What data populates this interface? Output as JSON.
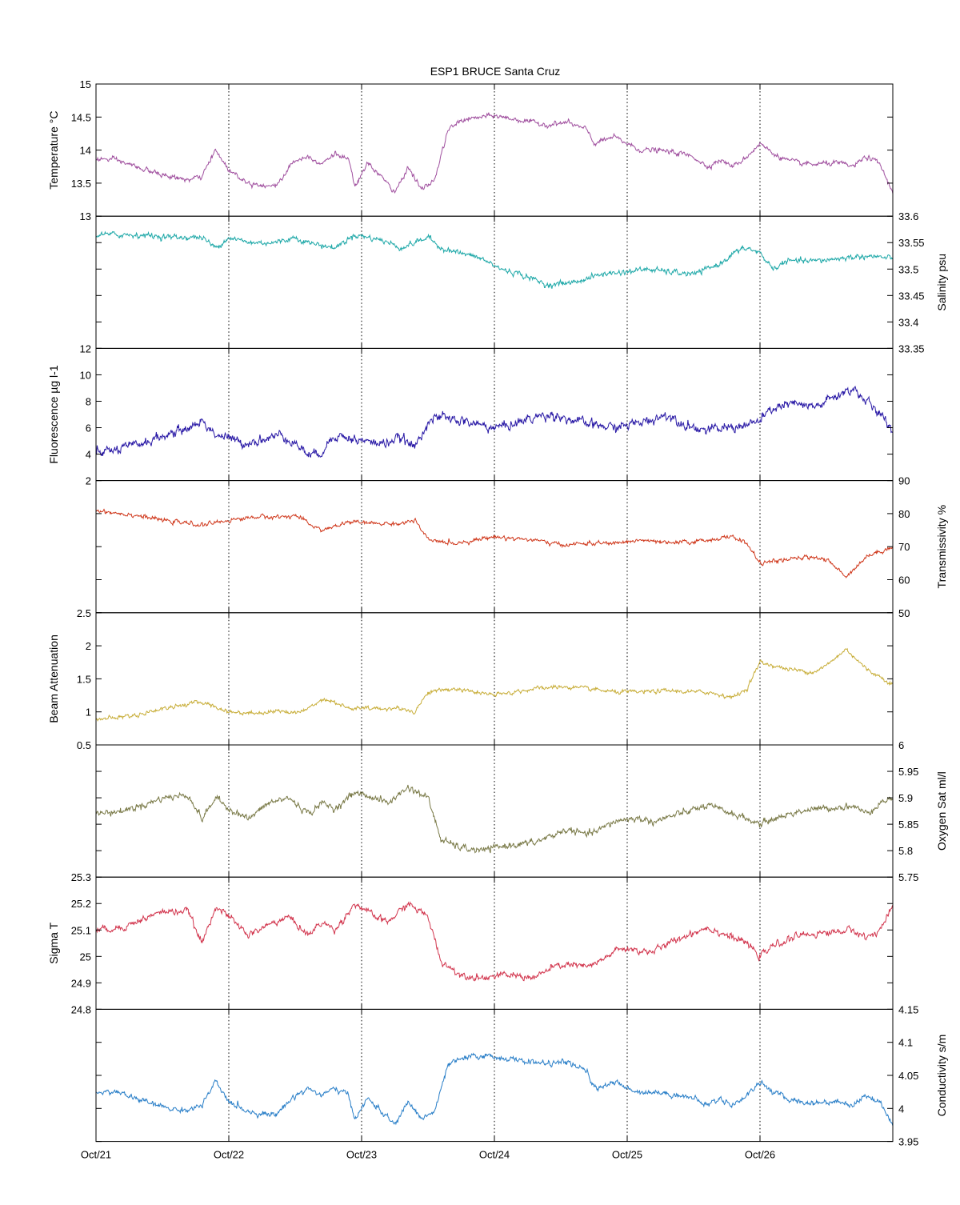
{
  "figure": {
    "title": "ESP1 BRUCE Santa Cruz",
    "x_tick_labels": [
      "Oct/21",
      "Oct/22",
      "Oct/23",
      "Oct/24",
      "Oct/25",
      "Oct/26"
    ]
  },
  "chart_data": [
    {
      "type": "line",
      "name": "temperature",
      "ylabel": "Temperature °C",
      "axis_side": "left",
      "ylim": [
        13,
        15
      ],
      "yticks": [
        13,
        13.5,
        14,
        14.5,
        15
      ],
      "ytick_labels": [
        "13",
        "13.5",
        "14",
        "14.5",
        "15"
      ],
      "color": "#a0509f",
      "noise": 0.035,
      "xlim": [
        0,
        6
      ],
      "grid_x": true,
      "x": [
        0,
        0.15,
        0.3,
        0.45,
        0.6,
        0.7,
        0.8,
        0.9,
        1.0,
        1.15,
        1.35,
        1.5,
        1.6,
        1.7,
        1.8,
        1.9,
        1.95,
        2.05,
        2.15,
        2.25,
        2.35,
        2.45,
        2.55,
        2.65,
        2.75,
        2.9,
        3.0,
        3.2,
        3.4,
        3.55,
        3.7,
        3.75,
        3.9,
        4.0,
        4.1,
        4.2,
        4.3,
        4.4,
        4.5,
        4.6,
        4.7,
        4.8,
        4.9,
        5.0,
        5.1,
        5.2,
        5.3,
        5.4,
        5.5,
        5.6,
        5.7,
        5.8,
        5.9,
        6.0
      ],
      "values": [
        13.87,
        13.85,
        13.75,
        13.65,
        13.58,
        13.55,
        13.6,
        14.0,
        13.7,
        13.5,
        13.45,
        13.85,
        13.9,
        13.8,
        13.95,
        13.85,
        13.45,
        13.8,
        13.6,
        13.35,
        13.75,
        13.4,
        13.55,
        14.3,
        14.45,
        14.5,
        14.52,
        14.45,
        14.38,
        14.42,
        14.3,
        14.1,
        14.2,
        14.1,
        14.0,
        14.0,
        13.98,
        13.95,
        13.9,
        13.75,
        13.85,
        13.75,
        13.9,
        14.1,
        13.95,
        13.85,
        13.8,
        13.78,
        13.8,
        13.8,
        13.75,
        13.9,
        13.8,
        13.35
      ]
    },
    {
      "type": "line",
      "name": "salinity",
      "ylabel": "Salinity psu",
      "axis_side": "right",
      "ylim": [
        33.35,
        33.6
      ],
      "yticks": [
        33.35,
        33.4,
        33.45,
        33.5,
        33.55,
        33.6
      ],
      "ytick_labels": [
        "33.35",
        "33.4",
        "33.45",
        "33.5",
        "33.55",
        "33.6"
      ],
      "color": "#1ea8a8",
      "noise": 0.005,
      "xlim": [
        0,
        6
      ],
      "grid_x": true,
      "x": [
        0,
        0.3,
        0.6,
        0.8,
        0.9,
        1.0,
        1.15,
        1.35,
        1.5,
        1.6,
        1.8,
        1.95,
        2.15,
        2.3,
        2.5,
        2.6,
        2.75,
        2.9,
        3.05,
        3.2,
        3.4,
        3.6,
        3.8,
        4.0,
        4.15,
        4.3,
        4.5,
        4.6,
        4.7,
        4.8,
        4.9,
        5.0,
        5.1,
        5.2,
        5.4,
        5.6,
        5.8,
        6.0
      ],
      "values": [
        33.565,
        33.565,
        33.56,
        33.56,
        33.54,
        33.56,
        33.55,
        33.55,
        33.56,
        33.55,
        33.54,
        33.565,
        33.555,
        33.54,
        33.56,
        33.54,
        33.53,
        33.52,
        33.5,
        33.49,
        33.47,
        33.475,
        33.49,
        33.495,
        33.5,
        33.495,
        33.49,
        33.5,
        33.51,
        33.53,
        33.54,
        33.53,
        33.5,
        33.515,
        33.515,
        33.52,
        33.525,
        33.52
      ]
    },
    {
      "type": "line",
      "name": "fluorescence",
      "ylabel": "Fluorescence µg l-1",
      "axis_side": "left",
      "ylim": [
        2,
        12
      ],
      "yticks": [
        2,
        4,
        6,
        8,
        10,
        12
      ],
      "ytick_labels": [
        "2",
        "4",
        "6",
        "8",
        "10",
        "12"
      ],
      "color": "#2a1aa6",
      "noise": 0.35,
      "xlim": [
        0,
        6
      ],
      "grid_x": true,
      "x": [
        0,
        0.2,
        0.4,
        0.55,
        0.7,
        0.8,
        0.9,
        1.0,
        1.1,
        1.2,
        1.3,
        1.4,
        1.5,
        1.6,
        1.65,
        1.7,
        1.8,
        1.9,
        2.0,
        2.15,
        2.3,
        2.4,
        2.5,
        2.6,
        2.75,
        2.9,
        3.0,
        3.15,
        3.3,
        3.45,
        3.6,
        3.75,
        3.9,
        4.0,
        4.15,
        4.3,
        4.45,
        4.6,
        4.75,
        4.9,
        5.0,
        5.1,
        5.25,
        5.4,
        5.5,
        5.6,
        5.7,
        5.8,
        5.9,
        6.0
      ],
      "values": [
        4.1,
        4.4,
        5.0,
        5.5,
        6.0,
        6.5,
        5.5,
        5.2,
        4.8,
        5.0,
        5.2,
        5.5,
        4.8,
        4.0,
        3.9,
        4.2,
        5.5,
        5.2,
        5.0,
        4.8,
        5.2,
        4.5,
        6.5,
        6.8,
        6.5,
        6.2,
        6.0,
        6.3,
        6.8,
        7.0,
        6.5,
        6.2,
        6.0,
        6.2,
        6.5,
        7.0,
        6.2,
        5.8,
        6.0,
        6.2,
        6.5,
        7.5,
        7.8,
        7.5,
        8.0,
        8.5,
        9.0,
        8.0,
        7.0,
        5.8
      ]
    },
    {
      "type": "line",
      "name": "transmissivity",
      "ylabel": "Transmissivity %",
      "axis_side": "right",
      "ylim": [
        50,
        90
      ],
      "yticks": [
        50,
        60,
        70,
        80,
        90
      ],
      "ytick_labels": [
        "50",
        "60",
        "70",
        "80",
        "90"
      ],
      "color": "#d03a1e",
      "noise": 0.6,
      "xlim": [
        0,
        6
      ],
      "grid_x": true,
      "x": [
        0,
        0.3,
        0.5,
        0.7,
        0.8,
        1.0,
        1.2,
        1.4,
        1.5,
        1.6,
        1.7,
        1.8,
        1.9,
        2.1,
        2.3,
        2.4,
        2.5,
        2.7,
        3.0,
        3.3,
        3.5,
        3.7,
        3.9,
        4.1,
        4.3,
        4.5,
        4.6,
        4.8,
        4.9,
        5.0,
        5.2,
        5.4,
        5.5,
        5.65,
        5.8,
        6.0
      ],
      "values": [
        81,
        79.5,
        78,
        77,
        76.5,
        78,
        79,
        79,
        79.5,
        77,
        75,
        76,
        77.5,
        77,
        77,
        78,
        72,
        71,
        73,
        72,
        70.5,
        71,
        71,
        72,
        71,
        71.5,
        72,
        73,
        71,
        65,
        66,
        67,
        66,
        61,
        67,
        70
      ]
    },
    {
      "type": "line",
      "name": "beam_attenuation",
      "ylabel": "Beam Attenuation",
      "axis_side": "left",
      "ylim": [
        0.5,
        2.5
      ],
      "yticks": [
        0.5,
        1,
        1.5,
        2,
        2.5
      ],
      "ytick_labels": [
        "0.5",
        "1",
        "1.5",
        "2",
        "2.5"
      ],
      "color": "#c8ae3a",
      "noise": 0.03,
      "xlim": [
        0,
        6
      ],
      "grid_x": true,
      "x": [
        0,
        0.3,
        0.5,
        0.7,
        0.8,
        1.0,
        1.2,
        1.4,
        1.5,
        1.6,
        1.7,
        1.8,
        1.9,
        2.1,
        2.3,
        2.4,
        2.5,
        2.7,
        3.0,
        3.3,
        3.5,
        3.7,
        3.9,
        4.1,
        4.3,
        4.5,
        4.6,
        4.8,
        4.9,
        5.0,
        5.2,
        5.4,
        5.5,
        5.65,
        5.8,
        6.0
      ],
      "values": [
        0.88,
        0.95,
        1.05,
        1.12,
        1.15,
        1.0,
        0.98,
        1.02,
        0.98,
        1.05,
        1.2,
        1.15,
        1.05,
        1.05,
        1.05,
        1.0,
        1.3,
        1.35,
        1.25,
        1.35,
        1.38,
        1.35,
        1.3,
        1.3,
        1.32,
        1.3,
        1.3,
        1.22,
        1.35,
        1.75,
        1.65,
        1.6,
        1.7,
        1.95,
        1.65,
        1.42
      ]
    },
    {
      "type": "line",
      "name": "oxygen_sat",
      "ylabel": "Oxygen Sat ml/l",
      "axis_side": "right",
      "ylim": [
        5.75,
        6
      ],
      "yticks": [
        5.75,
        5.8,
        5.85,
        5.9,
        5.95,
        6
      ],
      "ytick_labels": [
        "5.75",
        "5.8",
        "5.85",
        "5.9",
        "5.95",
        "6"
      ],
      "color": "#7a7a48",
      "noise": 0.006,
      "xlim": [
        0,
        6
      ],
      "grid_x": true,
      "x": [
        0,
        0.2,
        0.4,
        0.5,
        0.7,
        0.75,
        0.8,
        0.9,
        1.0,
        1.15,
        1.3,
        1.45,
        1.6,
        1.7,
        1.8,
        1.95,
        2.1,
        2.2,
        2.35,
        2.5,
        2.6,
        2.75,
        2.9,
        3.1,
        3.3,
        3.45,
        3.55,
        3.7,
        3.8,
        3.9,
        4.0,
        4.1,
        4.2,
        4.4,
        4.6,
        4.8,
        4.9,
        5.0,
        5.1,
        5.3,
        5.5,
        5.7,
        5.8,
        5.9,
        6.0
      ],
      "values": [
        5.87,
        5.875,
        5.89,
        5.9,
        5.905,
        5.88,
        5.86,
        5.9,
        5.88,
        5.86,
        5.89,
        5.9,
        5.87,
        5.89,
        5.88,
        5.91,
        5.9,
        5.89,
        5.92,
        5.9,
        5.82,
        5.805,
        5.8,
        5.81,
        5.815,
        5.83,
        5.84,
        5.83,
        5.84,
        5.855,
        5.86,
        5.86,
        5.855,
        5.87,
        5.885,
        5.87,
        5.86,
        5.85,
        5.86,
        5.875,
        5.88,
        5.885,
        5.87,
        5.89,
        5.9
      ]
    },
    {
      "type": "line",
      "name": "sigma_t",
      "ylabel": "Sigma T",
      "axis_side": "left",
      "ylim": [
        24.8,
        25.3
      ],
      "yticks": [
        24.8,
        24.9,
        25,
        25.1,
        25.2,
        25.3
      ],
      "ytick_labels": [
        "24.8",
        "24.9",
        "25",
        "25.1",
        "25.2",
        "25.3"
      ],
      "color": "#d2364e",
      "noise": 0.012,
      "xlim": [
        0,
        6
      ],
      "grid_x": true,
      "x": [
        0,
        0.2,
        0.4,
        0.5,
        0.7,
        0.75,
        0.8,
        0.9,
        1.0,
        1.15,
        1.3,
        1.45,
        1.6,
        1.7,
        1.8,
        1.95,
        2.1,
        2.2,
        2.35,
        2.5,
        2.6,
        2.75,
        2.9,
        3.1,
        3.3,
        3.45,
        3.55,
        3.7,
        3.8,
        3.9,
        4.0,
        4.1,
        4.2,
        4.4,
        4.6,
        4.8,
        4.9,
        5.0,
        5.1,
        5.3,
        5.5,
        5.7,
        5.8,
        5.9,
        6.0
      ],
      "values": [
        25.1,
        25.11,
        25.15,
        25.17,
        25.17,
        25.1,
        25.05,
        25.19,
        25.15,
        25.08,
        25.12,
        25.15,
        25.08,
        25.13,
        25.1,
        25.2,
        25.15,
        25.13,
        25.2,
        25.15,
        24.98,
        24.93,
        24.92,
        24.93,
        24.92,
        24.96,
        24.97,
        24.96,
        24.98,
        25.02,
        25.03,
        25.02,
        25.02,
        25.07,
        25.11,
        25.07,
        25.05,
        25.0,
        25.04,
        25.08,
        25.09,
        25.1,
        25.07,
        25.1,
        25.18
      ]
    },
    {
      "type": "line",
      "name": "conductivity",
      "ylabel": "Conductivity s/m",
      "axis_side": "right",
      "ylim": [
        3.95,
        4.15
      ],
      "yticks": [
        3.95,
        4,
        4.05,
        4.1,
        4.15
      ],
      "ytick_labels": [
        "3.95",
        "4",
        "4.05",
        "4.1",
        "4.15"
      ],
      "color": "#2a7fc8",
      "noise": 0.004,
      "xlim": [
        0,
        6
      ],
      "grid_x": true,
      "x": [
        0,
        0.15,
        0.3,
        0.45,
        0.6,
        0.7,
        0.8,
        0.9,
        1.0,
        1.15,
        1.35,
        1.5,
        1.6,
        1.7,
        1.8,
        1.9,
        1.95,
        2.05,
        2.15,
        2.25,
        2.35,
        2.45,
        2.55,
        2.65,
        2.75,
        2.9,
        3.0,
        3.2,
        3.4,
        3.55,
        3.7,
        3.75,
        3.9,
        4.0,
        4.1,
        4.2,
        4.3,
        4.4,
        4.5,
        4.6,
        4.7,
        4.8,
        4.9,
        5.0,
        5.1,
        5.2,
        5.3,
        5.4,
        5.5,
        5.6,
        5.7,
        5.8,
        5.9,
        6.0
      ],
      "values": [
        4.025,
        4.025,
        4.015,
        4.005,
        3.998,
        3.998,
        4.005,
        4.04,
        4.01,
        3.995,
        3.99,
        4.02,
        4.03,
        4.02,
        4.03,
        4.02,
        3.985,
        4.015,
        3.995,
        3.975,
        4.01,
        3.985,
        3.995,
        4.065,
        4.075,
        4.08,
        4.078,
        4.072,
        4.068,
        4.07,
        4.055,
        4.03,
        4.04,
        4.03,
        4.025,
        4.025,
        4.022,
        4.02,
        4.015,
        4.005,
        4.015,
        4.005,
        4.02,
        4.04,
        4.025,
        4.015,
        4.01,
        4.008,
        4.01,
        4.01,
        4.005,
        4.02,
        4.01,
        3.975
      ]
    }
  ]
}
